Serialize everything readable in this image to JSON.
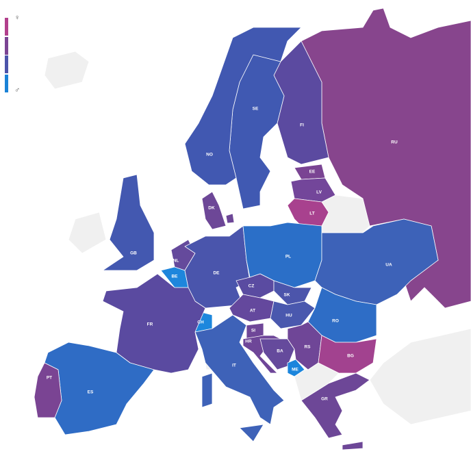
{
  "legend": {
    "female_symbol": "♀",
    "male_symbol": "♂",
    "colors": [
      "#b23f8c",
      "#7b4493",
      "#4c54aa",
      "#1a82d6"
    ]
  },
  "no_data_color": "#f0f0f0",
  "countries": [
    {
      "code": "RU",
      "color": "#87458d"
    },
    {
      "code": "FI",
      "color": "#5b4aa0"
    },
    {
      "code": "SE",
      "color": "#4059b2"
    },
    {
      "code": "NO",
      "color": "#4158b1"
    },
    {
      "code": "EE",
      "color": "#7a4493"
    },
    {
      "code": "LV",
      "color": "#73469a"
    },
    {
      "code": "LT",
      "color": "#a8418e"
    },
    {
      "code": "DK",
      "color": "#6d4797"
    },
    {
      "code": "GB",
      "color": "#4358b0"
    },
    {
      "code": "NL",
      "color": "#654a9c"
    },
    {
      "code": "BE",
      "color": "#1e86dc"
    },
    {
      "code": "DE",
      "color": "#4a55ac"
    },
    {
      "code": "PL",
      "color": "#2b6fc8"
    },
    {
      "code": "UA",
      "color": "#3d62b8"
    },
    {
      "code": "CZ",
      "color": "#5a4ba1"
    },
    {
      "code": "SK",
      "color": "#4c55ab"
    },
    {
      "code": "AT",
      "color": "#64489d"
    },
    {
      "code": "HU",
      "color": "#4a58ae"
    },
    {
      "code": "RO",
      "color": "#2e6dc6"
    },
    {
      "code": "CH",
      "color": "#1d87dd"
    },
    {
      "code": "FR",
      "color": "#5a4aa0"
    },
    {
      "code": "SI",
      "color": "#6f4698"
    },
    {
      "code": "HR",
      "color": "#6e4698"
    },
    {
      "code": "BA",
      "color": "#654a9c"
    },
    {
      "code": "RS",
      "color": "#6f4697"
    },
    {
      "code": "BG",
      "color": "#a2428f"
    },
    {
      "code": "ME",
      "color": "#1b85dc"
    },
    {
      "code": "IT",
      "color": "#3e62b8"
    },
    {
      "code": "ES",
      "color": "#2f6cc5"
    },
    {
      "code": "PT",
      "color": "#7a4493"
    },
    {
      "code": "GR",
      "color": "#6d4797"
    }
  ]
}
